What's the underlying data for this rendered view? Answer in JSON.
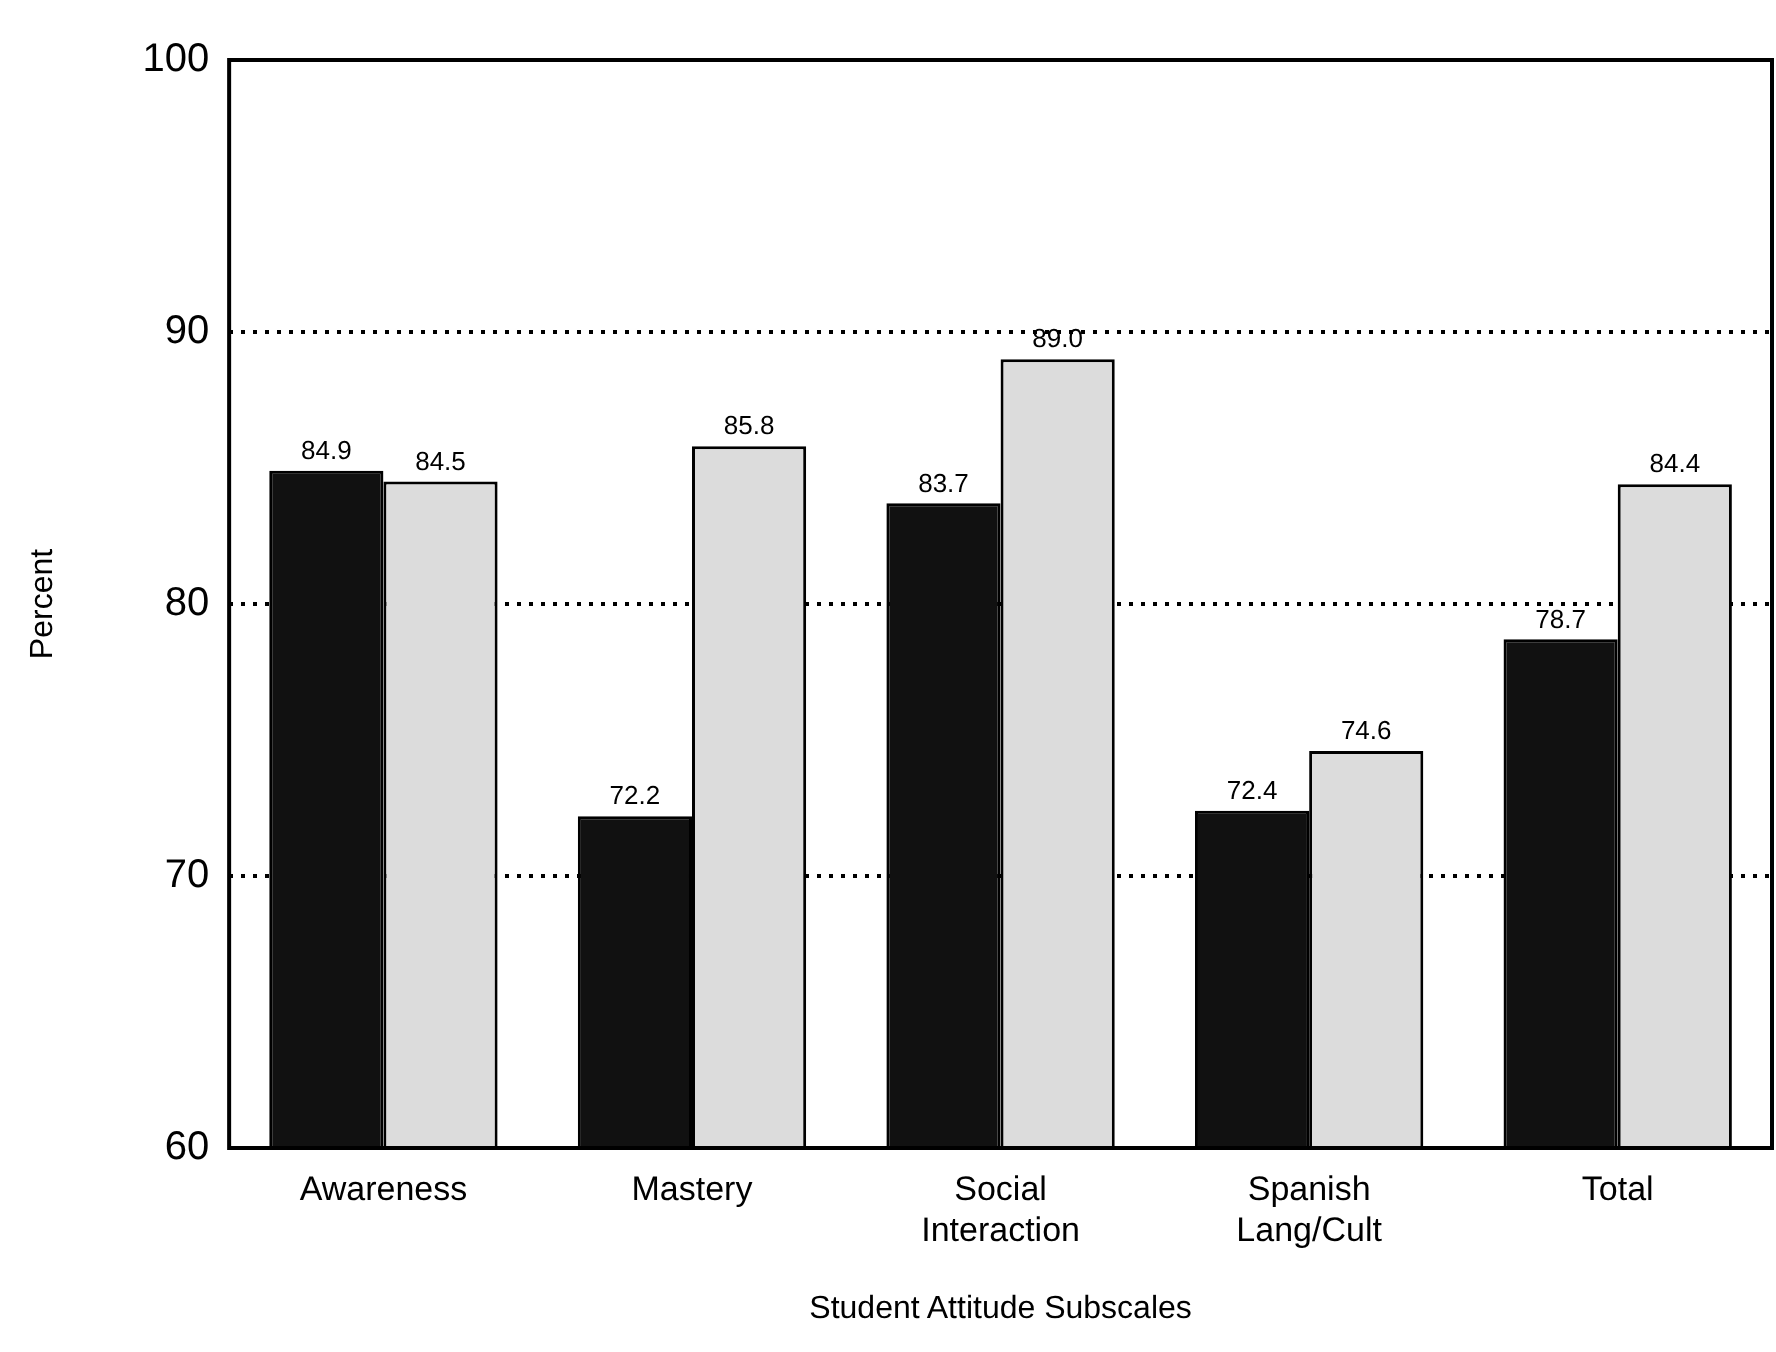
{
  "chart_data": {
    "type": "bar",
    "xlabel": "Student Attitude Subscales",
    "ylabel": "Percent",
    "categories": [
      "Awareness",
      "Mastery",
      "Social Interaction",
      "Spanish Lang/Cult",
      "Total"
    ],
    "series": [
      {
        "color": "#111111",
        "values": [
          84.9,
          72.2,
          83.7,
          72.4,
          78.7
        ],
        "value_labels": [
          "84.9",
          "72.2",
          "83.7",
          "72.4",
          "78.7"
        ]
      },
      {
        "color": "#dcdcdc",
        "values": [
          84.5,
          85.8,
          89.0,
          74.6,
          84.4
        ],
        "value_labels": [
          "84.5",
          "85.8",
          "89.0",
          "74.6",
          "84.4"
        ]
      }
    ],
    "ylim": [
      60,
      100
    ],
    "yticks": [
      60,
      70,
      80,
      90,
      100
    ],
    "grid": "y",
    "legend": false
  }
}
